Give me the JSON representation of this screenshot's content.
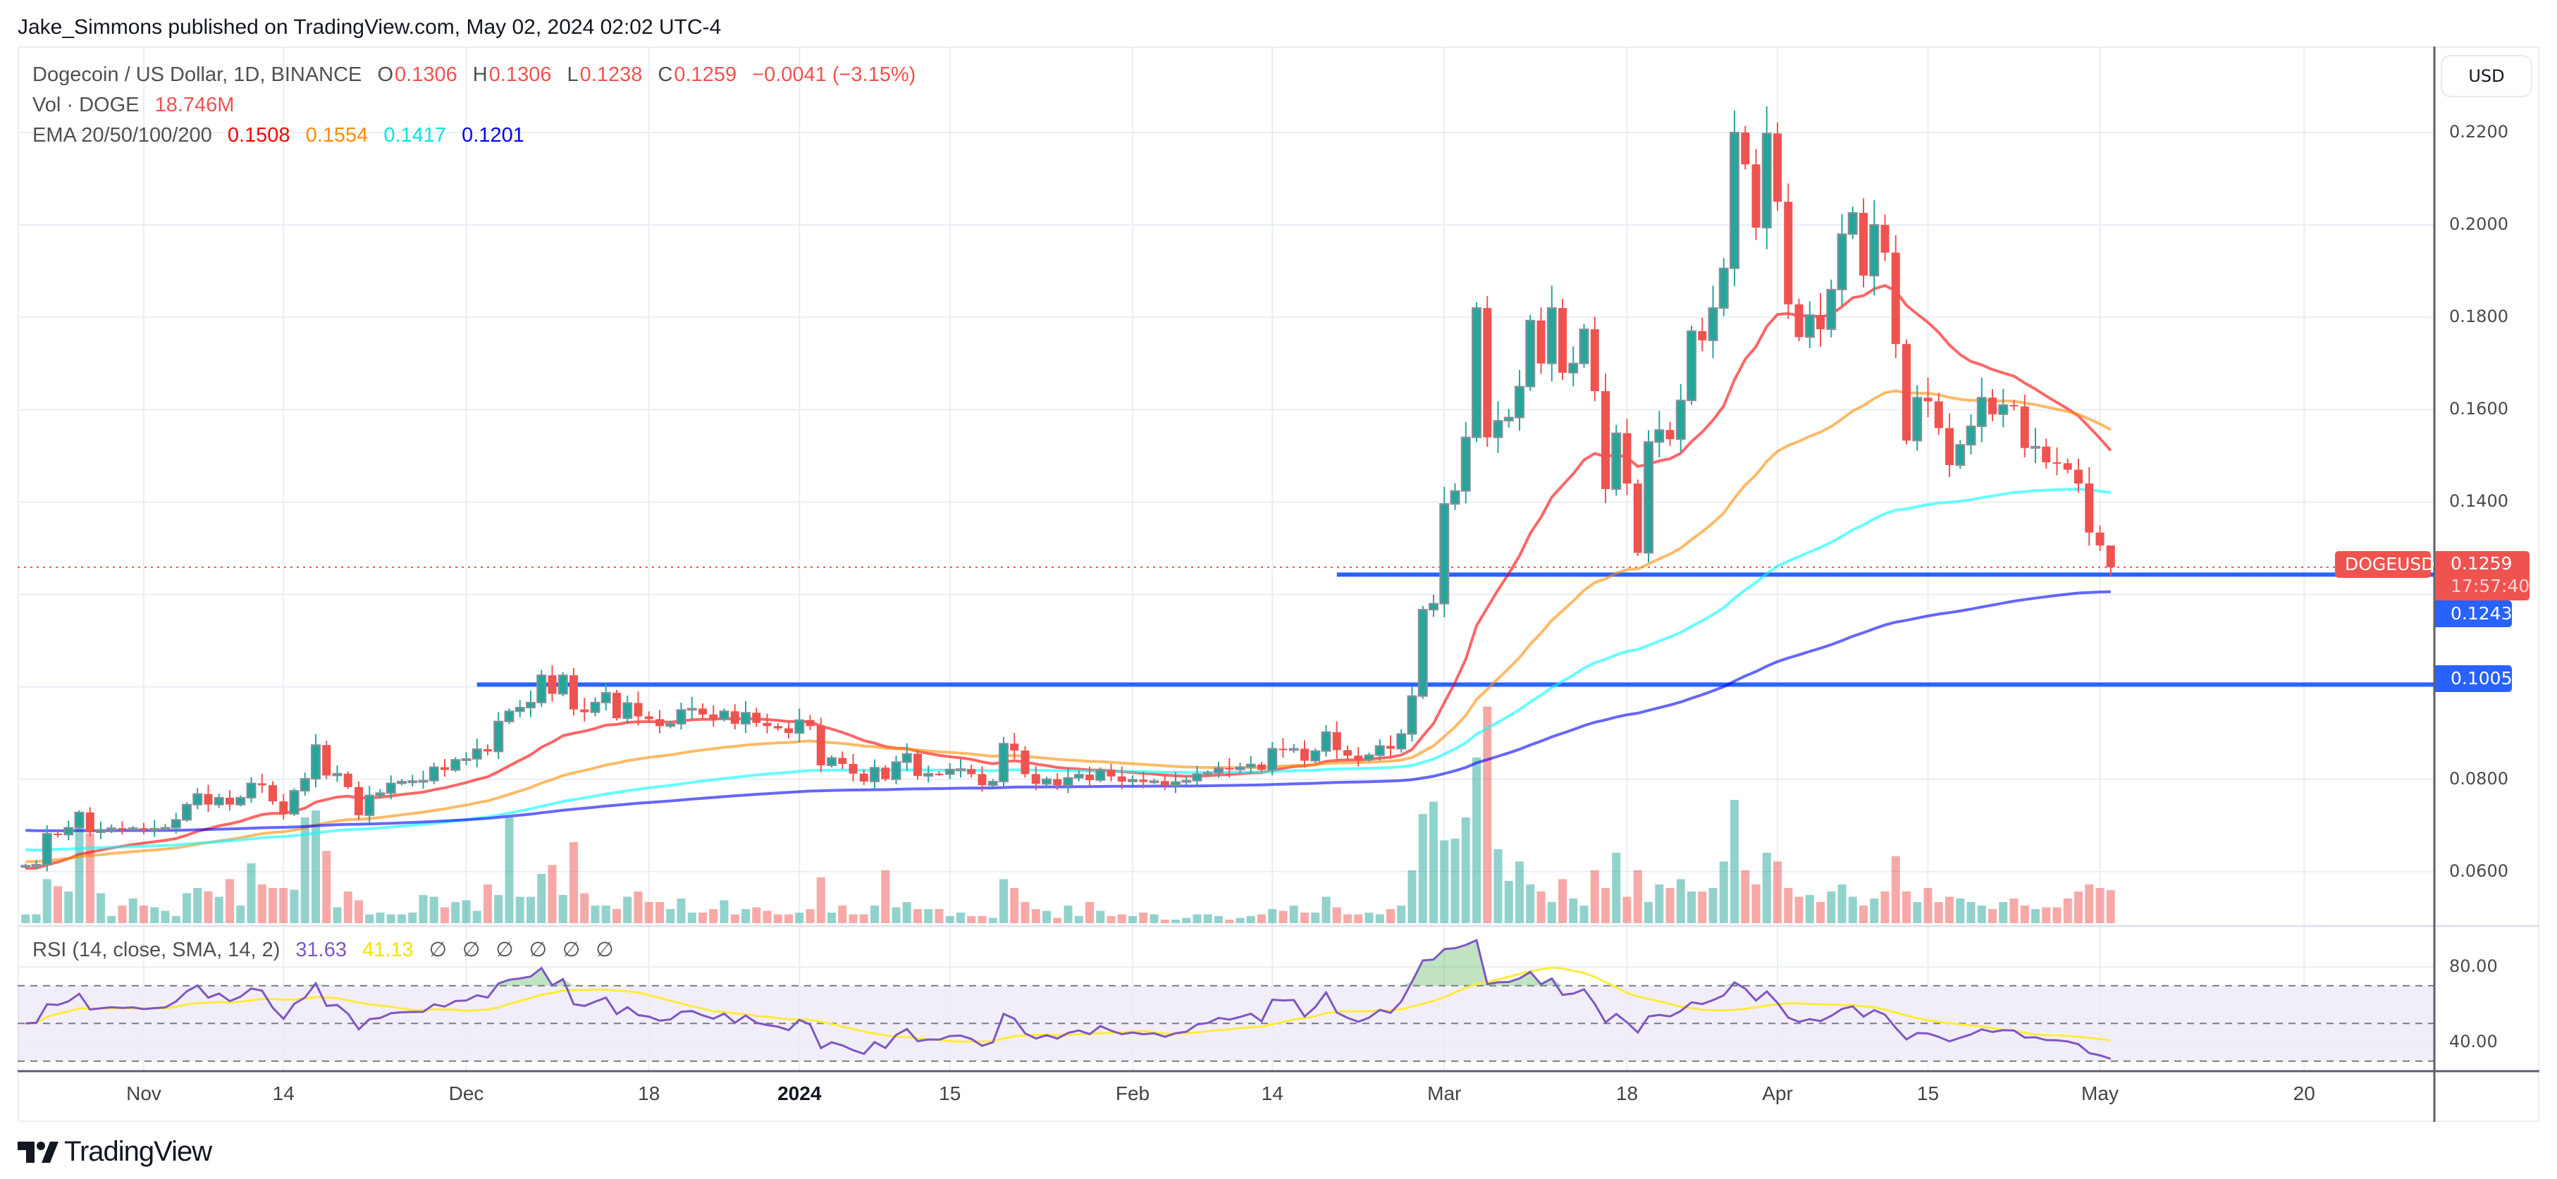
{
  "header": {
    "published": "Jake_Simmons published on TradingView.com, May 02, 2024 02:02 UTC-4"
  },
  "legend": {
    "symbol": "Dogecoin / US Dollar, 1D, BINANCE",
    "o_label": "O",
    "o": "0.1306",
    "h_label": "H",
    "h": "0.1306",
    "l_label": "L",
    "l": "0.1238",
    "c_label": "C",
    "c": "0.1259",
    "change": "−0.0041 (−3.15%)",
    "vol_label": "Vol · DOGE",
    "vol": "18.746M",
    "ema_label": "EMA 20/50/100/200",
    "ema20": "0.1508",
    "ema50": "0.1554",
    "ema100": "0.1417",
    "ema200": "0.1201"
  },
  "rsi_legend": {
    "label": "RSI (14, close, SMA, 14, 2)",
    "rsi": "31.63",
    "sma": "41.13",
    "na": [
      "∅",
      "∅",
      "∅",
      "∅",
      "∅",
      "∅"
    ]
  },
  "price_axis": {
    "currency": "USD",
    "ticks": [
      "0.2200",
      "0.2000",
      "0.1800",
      "0.1600",
      "0.1400",
      "0.0800",
      "0.0600"
    ]
  },
  "rsi_axis": {
    "ticks": [
      "80.00",
      "40.00"
    ]
  },
  "time_axis": {
    "labels": [
      {
        "label": "Nov",
        "day": 0
      },
      {
        "label": "14",
        "day": 13
      },
      {
        "label": "Dec",
        "day": 30
      },
      {
        "label": "18",
        "day": 47
      },
      {
        "label": "2024",
        "day": 61
      },
      {
        "label": "15",
        "day": 75
      },
      {
        "label": "Feb",
        "day": 92
      },
      {
        "label": "14",
        "day": 105
      },
      {
        "label": "Mar",
        "day": 121
      },
      {
        "label": "18",
        "day": 138
      },
      {
        "label": "Apr",
        "day": 152
      },
      {
        "label": "15",
        "day": 166
      },
      {
        "label": "May",
        "day": 182
      },
      {
        "label": "20",
        "day": 201
      }
    ]
  },
  "markers": {
    "symbol_tag": "DOGEUSD",
    "last_price": "0.1259",
    "countdown": "17:57:40",
    "level_upper": "0.1243",
    "level_lower": "0.1005"
  },
  "logo": {
    "text": "TradingView"
  },
  "colors": {
    "up": "#26a69a",
    "down": "#ef5350",
    "ema20": "#ff0000",
    "ema50": "#ff8c00",
    "ema100": "#00ffff",
    "ema200": "#0000ff",
    "rsi": "#7e57c2",
    "rsi_sma": "#ffeb3b",
    "level": "#2962ff"
  },
  "chart_data": {
    "type": "candlestick",
    "title": "Dogecoin / US Dollar, 1D, BINANCE",
    "first_day": -11,
    "ylim": [
      0.05,
      0.23
    ],
    "closes": [
      0.0613,
      0.0615,
      0.0682,
      0.068,
      0.0695,
      0.0728,
      0.0685,
      0.069,
      0.0694,
      0.0692,
      0.0694,
      0.069,
      0.0693,
      0.0695,
      0.0712,
      0.0745,
      0.0768,
      0.0745,
      0.076,
      0.0745,
      0.076,
      0.0791,
      0.0787,
      0.0752,
      0.0725,
      0.0775,
      0.0801,
      0.0874,
      0.0808,
      0.0812,
      0.0783,
      0.0722,
      0.0765,
      0.077,
      0.0791,
      0.0795,
      0.0796,
      0.0797,
      0.0826,
      0.082,
      0.0842,
      0.0844,
      0.0865,
      0.086,
      0.0925,
      0.0947,
      0.0955,
      0.0966,
      0.1025,
      0.0985,
      0.1025,
      0.0951,
      0.0945,
      0.0966,
      0.0987,
      0.0932,
      0.0965,
      0.0936,
      0.093,
      0.0915,
      0.092,
      0.095,
      0.0953,
      0.094,
      0.093,
      0.0947,
      0.092,
      0.0944,
      0.0922,
      0.0915,
      0.091,
      0.09,
      0.0928,
      0.0915,
      0.083,
      0.0846,
      0.0833,
      0.0812,
      0.0795,
      0.0825,
      0.08,
      0.0837,
      0.0855,
      0.0807,
      0.0812,
      0.0811,
      0.0821,
      0.0822,
      0.0811,
      0.0787,
      0.0795,
      0.0877,
      0.0862,
      0.0811,
      0.079,
      0.08,
      0.0787,
      0.0803,
      0.081,
      0.0798,
      0.082,
      0.0806,
      0.0795,
      0.0799,
      0.0794,
      0.0796,
      0.0787,
      0.0794,
      0.0797,
      0.0811,
      0.0814,
      0.0824,
      0.0821,
      0.0826,
      0.0832,
      0.082,
      0.0866,
      0.0865,
      0.0866,
      0.084,
      0.0861,
      0.0902,
      0.0863,
      0.0851,
      0.0842,
      0.0852,
      0.0872,
      0.0866,
      0.0898,
      0.098,
      0.1167,
      0.118,
      0.1396,
      0.1424,
      0.154,
      0.182,
      0.154,
      0.1576,
      0.1583,
      0.165,
      0.1793,
      0.17,
      0.182,
      0.168,
      0.17,
      0.1774,
      0.164,
      0.1428,
      0.1549,
      0.144,
      0.129,
      0.153,
      0.1556,
      0.1536,
      0.162,
      0.177,
      0.175,
      0.182,
      0.1906,
      0.22,
      0.2131,
      0.1994,
      0.2198,
      0.205,
      0.1828,
      0.1757,
      0.1805,
      0.1774,
      0.186,
      0.198,
      0.2026,
      0.189,
      0.2,
      0.194,
      0.1742,
      0.1533,
      0.1626,
      0.1618,
      0.156,
      0.148,
      0.1524,
      0.1564,
      0.1626,
      0.159,
      0.161,
      0.1607,
      0.1517,
      0.152,
      0.1486,
      0.1484,
      0.147,
      0.144,
      0.1334,
      0.1306,
      0.1259
    ],
    "last_candle": {
      "open": 0.1306,
      "high": 0.1306,
      "low": 0.1238,
      "close": 0.1259
    },
    "volumes_m": [
      5,
      5,
      25,
      21,
      18,
      55,
      51,
      17,
      4,
      10,
      14,
      10,
      9,
      7,
      4,
      17,
      20,
      18,
      15,
      25,
      10,
      34,
      22,
      20,
      20,
      19,
      60,
      64,
      41,
      9,
      18,
      13,
      5,
      6,
      5,
      5,
      6,
      16,
      15,
      9,
      12,
      13,
      7,
      22,
      16,
      60,
      15,
      15,
      28,
      33,
      16,
      46,
      17,
      10,
      10,
      8,
      15,
      18,
      12,
      12,
      8,
      14,
      6,
      6,
      8,
      13,
      5,
      8,
      9,
      7,
      5,
      5,
      6,
      8,
      26,
      6,
      10,
      5,
      5,
      10,
      30,
      9,
      12,
      8,
      8,
      8,
      4,
      6,
      4,
      4,
      3,
      25,
      20,
      12,
      8,
      7,
      3,
      10,
      4,
      12,
      7,
      4,
      5,
      4,
      6,
      5,
      2,
      2,
      3,
      5,
      5,
      4,
      2,
      3,
      4,
      5,
      8,
      7,
      10,
      6,
      6,
      15,
      9,
      5,
      5,
      6,
      5,
      8,
      10,
      30,
      62,
      69,
      47,
      48,
      60,
      94,
      123,
      42,
      24,
      35,
      22,
      18,
      12,
      25,
      14,
      10,
      30,
      20,
      40,
      15,
      30,
      12,
      22,
      20,
      25,
      18,
      18,
      20,
      35,
      70,
      30,
      22,
      40,
      35,
      20,
      15,
      16,
      12,
      18,
      22,
      15,
      10,
      14,
      18,
      38,
      18,
      12,
      20,
      12,
      15,
      14,
      12,
      10,
      8,
      12,
      14,
      10,
      8,
      9,
      9,
      14,
      18,
      22,
      20,
      18.746
    ],
    "ema_seed": {
      "ema20": 0.0606,
      "ema50": 0.0622,
      "ema100": 0.0648,
      "ema200": 0.069
    },
    "levels": [
      {
        "price": 0.1243,
        "from_day": 111
      },
      {
        "price": 0.1005,
        "from_day": 31
      }
    ],
    "rsi": {
      "length": 14,
      "sma_length": 14,
      "ylim": [
        20,
        100
      ],
      "bands": [
        70,
        50,
        30
      ]
    }
  }
}
